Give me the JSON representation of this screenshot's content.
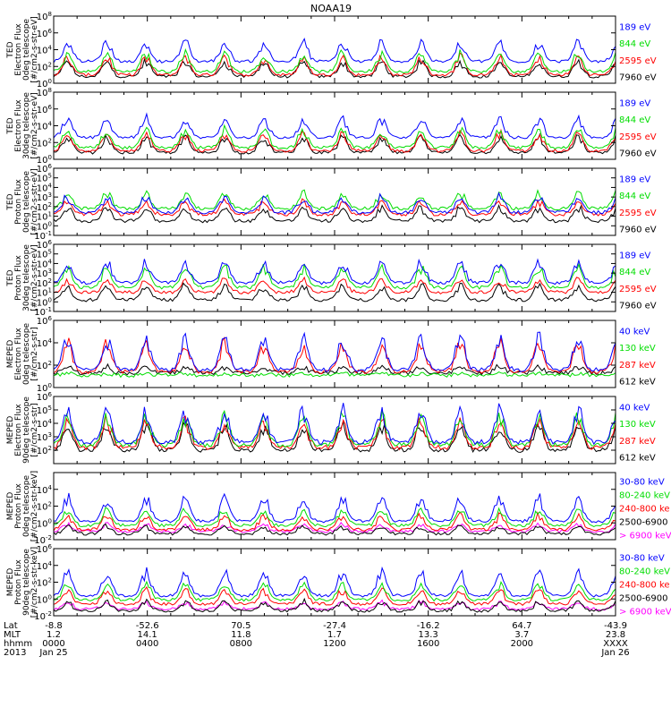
{
  "title": "NOAA19",
  "colors": {
    "blue": "#0000ff",
    "red": "#ff0000",
    "green": "#00dd00",
    "black": "#000000",
    "magenta": "#ff00ff"
  },
  "time_axis": {
    "row_labels": [
      "Lat",
      "MLT",
      "hhmm",
      "2013"
    ],
    "ticks": [
      {
        "lat": "-8.8",
        "mlt": "1.2",
        "hhmm": "0000",
        "date": "Jan 25"
      },
      {
        "lat": "-52.6",
        "mlt": "14.1",
        "hhmm": "0400",
        "date": ""
      },
      {
        "lat": "70.5",
        "mlt": "11.8",
        "hhmm": "0800",
        "date": ""
      },
      {
        "lat": "-27.4",
        "mlt": "1.7",
        "hhmm": "1200",
        "date": ""
      },
      {
        "lat": "-16.2",
        "mlt": "13.3",
        "hhmm": "1600",
        "date": ""
      },
      {
        "lat": "64.7",
        "mlt": "3.7",
        "hhmm": "2000",
        "date": ""
      },
      {
        "lat": "-43.9",
        "mlt": "23.8",
        "hhmm": "XXXX",
        "date": "Jan 26"
      }
    ]
  },
  "chart_data": [
    {
      "type": "line",
      "ylabel": [
        "TED",
        "Electron Flux",
        "0deg telescope",
        "[#/cm2-s-str-eV]"
      ],
      "log_y": true,
      "ylim_exp": [
        0,
        8
      ],
      "tick_exps": [
        0,
        2,
        4,
        6,
        8
      ],
      "series": [
        {
          "name": "7960 eV",
          "color": "black",
          "base": 0.8,
          "peak": 3.0
        },
        {
          "name": "2595 eV",
          "color": "red",
          "base": 1.0,
          "peak": 3.5
        },
        {
          "name": "844 eV",
          "color": "green",
          "base": 1.4,
          "peak": 4.0
        },
        {
          "name": "189 eV",
          "color": "blue",
          "base": 2.6,
          "peak": 5.3
        }
      ]
    },
    {
      "type": "line",
      "ylabel": [
        "TED",
        "Electron Flux",
        "30deg telescope",
        "[#/cm2-s-str-eV]"
      ],
      "log_y": true,
      "ylim_exp": [
        0,
        8
      ],
      "tick_exps": [
        0,
        2,
        4,
        6,
        8
      ],
      "series": [
        {
          "name": "7960 eV",
          "color": "black",
          "base": 0.8,
          "peak": 3.0
        },
        {
          "name": "2595 eV",
          "color": "red",
          "base": 1.0,
          "peak": 3.5
        },
        {
          "name": "844 eV",
          "color": "green",
          "base": 1.4,
          "peak": 4.0
        },
        {
          "name": "189 eV",
          "color": "blue",
          "base": 2.6,
          "peak": 5.3
        }
      ]
    },
    {
      "type": "line",
      "ylabel": [
        "TED",
        "Proton Flux",
        "0deg telescope",
        "[#/cm2-s-str-eV]"
      ],
      "log_y": true,
      "ylim_exp": [
        -1,
        6
      ],
      "tick_exps": [
        -1,
        0,
        1,
        2,
        3,
        4,
        5,
        6
      ],
      "series": [
        {
          "name": "7960 eV",
          "color": "black",
          "base": 0.5,
          "peak": 2.2
        },
        {
          "name": "2595 eV",
          "color": "red",
          "base": 1.2,
          "peak": 2.8
        },
        {
          "name": "844 eV",
          "color": "green",
          "base": 1.8,
          "peak": 3.8
        },
        {
          "name": "189 eV",
          "color": "blue",
          "base": 1.4,
          "peak": 3.4
        }
      ]
    },
    {
      "type": "line",
      "ylabel": [
        "TED",
        "Proton Flux",
        "30deg telescope",
        "[#/cm2-s-str-eV]"
      ],
      "log_y": true,
      "ylim_exp": [
        -1,
        6
      ],
      "tick_exps": [
        -1,
        0,
        1,
        2,
        3,
        4,
        5,
        6
      ],
      "series": [
        {
          "name": "7960 eV",
          "color": "black",
          "base": 0.2,
          "peak": 2.0
        },
        {
          "name": "2595 eV",
          "color": "red",
          "base": 1.0,
          "peak": 2.6
        },
        {
          "name": "844 eV",
          "color": "green",
          "base": 1.5,
          "peak": 4.0
        },
        {
          "name": "189 eV",
          "color": "blue",
          "base": 2.0,
          "peak": 4.6
        }
      ]
    },
    {
      "type": "line",
      "ylabel": [
        "MEPED",
        "Electron Flux",
        "0deg telescope",
        "[#/cm2-s-str]"
      ],
      "log_y": true,
      "ylim_exp": [
        0,
        6
      ],
      "tick_exps": [
        0,
        2,
        4,
        6
      ],
      "series": [
        {
          "name": "612 keV",
          "color": "black",
          "base": 1.3,
          "peak": 2.0
        },
        {
          "name": "287 keV",
          "color": "red",
          "base": 1.4,
          "peak": 4.5
        },
        {
          "name": "130 keV",
          "color": "green",
          "base": 1.1,
          "peak": 1.3
        },
        {
          "name": "40 keV",
          "color": "blue",
          "base": 1.6,
          "peak": 5.0
        }
      ]
    },
    {
      "type": "line",
      "ylabel": [
        "MEPED",
        "Electron Flux",
        "90deg telescope",
        "[#/cm2-s-str]"
      ],
      "log_y": true,
      "ylim_exp": [
        1,
        6
      ],
      "tick_exps": [
        2,
        3,
        4,
        5,
        6
      ],
      "series": [
        {
          "name": "612 keV",
          "color": "black",
          "base": 2.0,
          "peak": 4.2
        },
        {
          "name": "287 keV",
          "color": "red",
          "base": 2.2,
          "peak": 4.6
        },
        {
          "name": "130 keV",
          "color": "green",
          "base": 2.4,
          "peak": 5.0
        },
        {
          "name": "40 keV",
          "color": "blue",
          "base": 2.6,
          "peak": 5.4
        }
      ]
    },
    {
      "type": "line",
      "ylabel": [
        "MEPED",
        "Proton Flux",
        "0deg telescope",
        "[#/cm2-s-str-keV]"
      ],
      "log_y": true,
      "ylim_exp": [
        -2,
        6
      ],
      "tick_exps": [
        -2,
        0,
        2,
        4
      ],
      "series": [
        {
          "name": "> 6900 keV",
          "color": "magenta",
          "base": -1.0,
          "peak": 0.0
        },
        {
          "name": "2500-6900",
          "color": "black",
          "base": -1.3,
          "peak": -0.2
        },
        {
          "name": "240-800 ke",
          "color": "red",
          "base": -0.8,
          "peak": 1.2
        },
        {
          "name": "80-240 keV",
          "color": "green",
          "base": -0.3,
          "peak": 2.0
        },
        {
          "name": "30-80 keV",
          "color": "blue",
          "base": 0.2,
          "peak": 3.6
        }
      ]
    },
    {
      "type": "line",
      "ylabel": [
        "MEPED",
        "Proton Flux",
        "90deg telescope",
        "[#/cm2-s-str-keV]"
      ],
      "log_y": true,
      "ylim_exp": [
        -2,
        6
      ],
      "tick_exps": [
        -2,
        0,
        2,
        4,
        6
      ],
      "series": [
        {
          "name": "> 6900 keV",
          "color": "magenta",
          "base": -1.2,
          "peak": -0.2
        },
        {
          "name": "2500-6900",
          "color": "black",
          "base": -1.4,
          "peak": 0.0
        },
        {
          "name": "240-800 ke",
          "color": "red",
          "base": -0.6,
          "peak": 1.4
        },
        {
          "name": "80-240 keV",
          "color": "green",
          "base": -0.1,
          "peak": 2.2
        },
        {
          "name": "30-80 keV",
          "color": "blue",
          "base": 0.4,
          "peak": 3.8
        }
      ]
    }
  ]
}
